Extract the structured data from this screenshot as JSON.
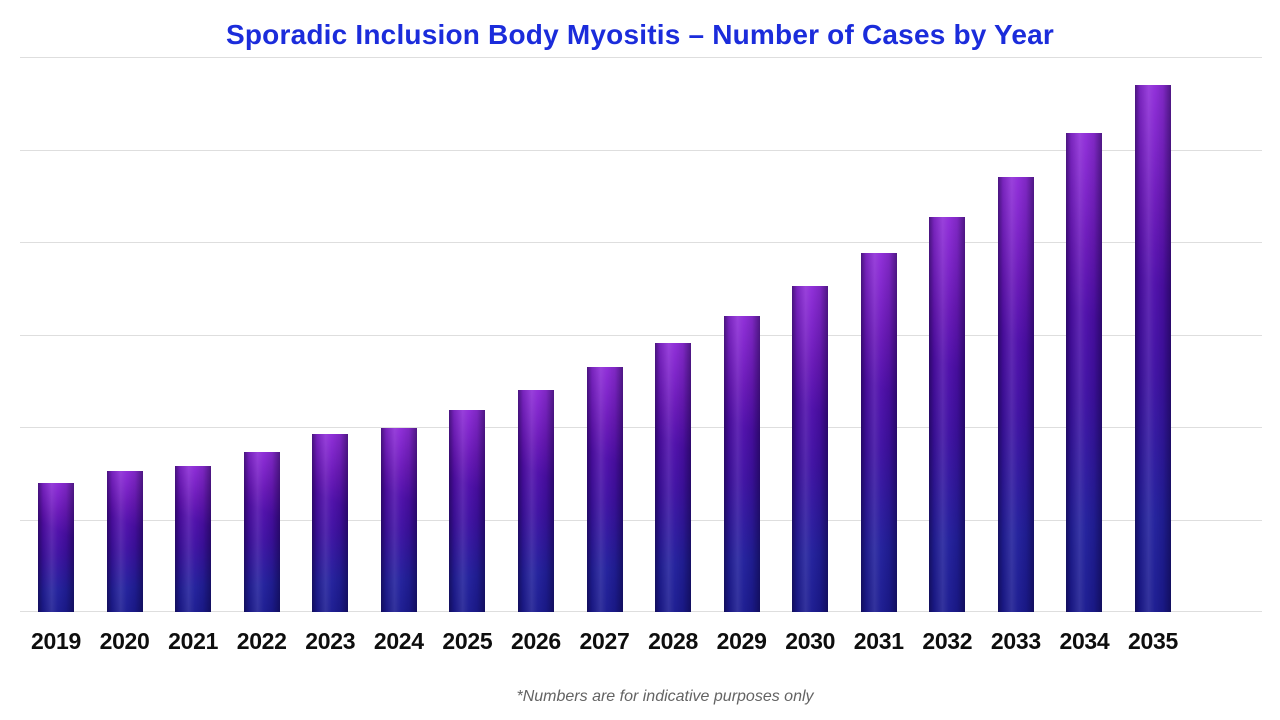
{
  "title": "Sporadic Inclusion Body Myositis – Number of Cases by Year",
  "footnote": "*Numbers are for indicative purposes only",
  "colors": {
    "title_blue": "#1b2cdb",
    "bar_purple_top": "#7212cb",
    "bar_navy_bottom": "#1b1b90",
    "gridline": "#dedede",
    "tick_label": "#0e0e0e",
    "footnote_gray": "#636363",
    "background": "#ffffff"
  },
  "chart_data": {
    "type": "bar",
    "title": "Sporadic Inclusion Body Myositis – Number of Cases by Year",
    "categories": [
      "2019",
      "2020",
      "2021",
      "2022",
      "2023",
      "2024",
      "2025",
      "2026",
      "2027",
      "2028",
      "2029",
      "2030",
      "2031",
      "2032",
      "2033",
      "2034",
      "2035"
    ],
    "values": [
      139,
      152,
      158,
      173,
      193,
      199,
      218,
      240,
      265,
      291,
      320,
      352,
      388,
      427,
      470,
      518,
      570
    ],
    "xlabel": "",
    "ylabel": "",
    "ylim": [
      0,
      600
    ],
    "gridline_count": 7,
    "grid": "horizontal",
    "y_axis_labels_visible": false,
    "legend_position": "none",
    "annotation": "*Numbers are for indicative purposes only"
  }
}
